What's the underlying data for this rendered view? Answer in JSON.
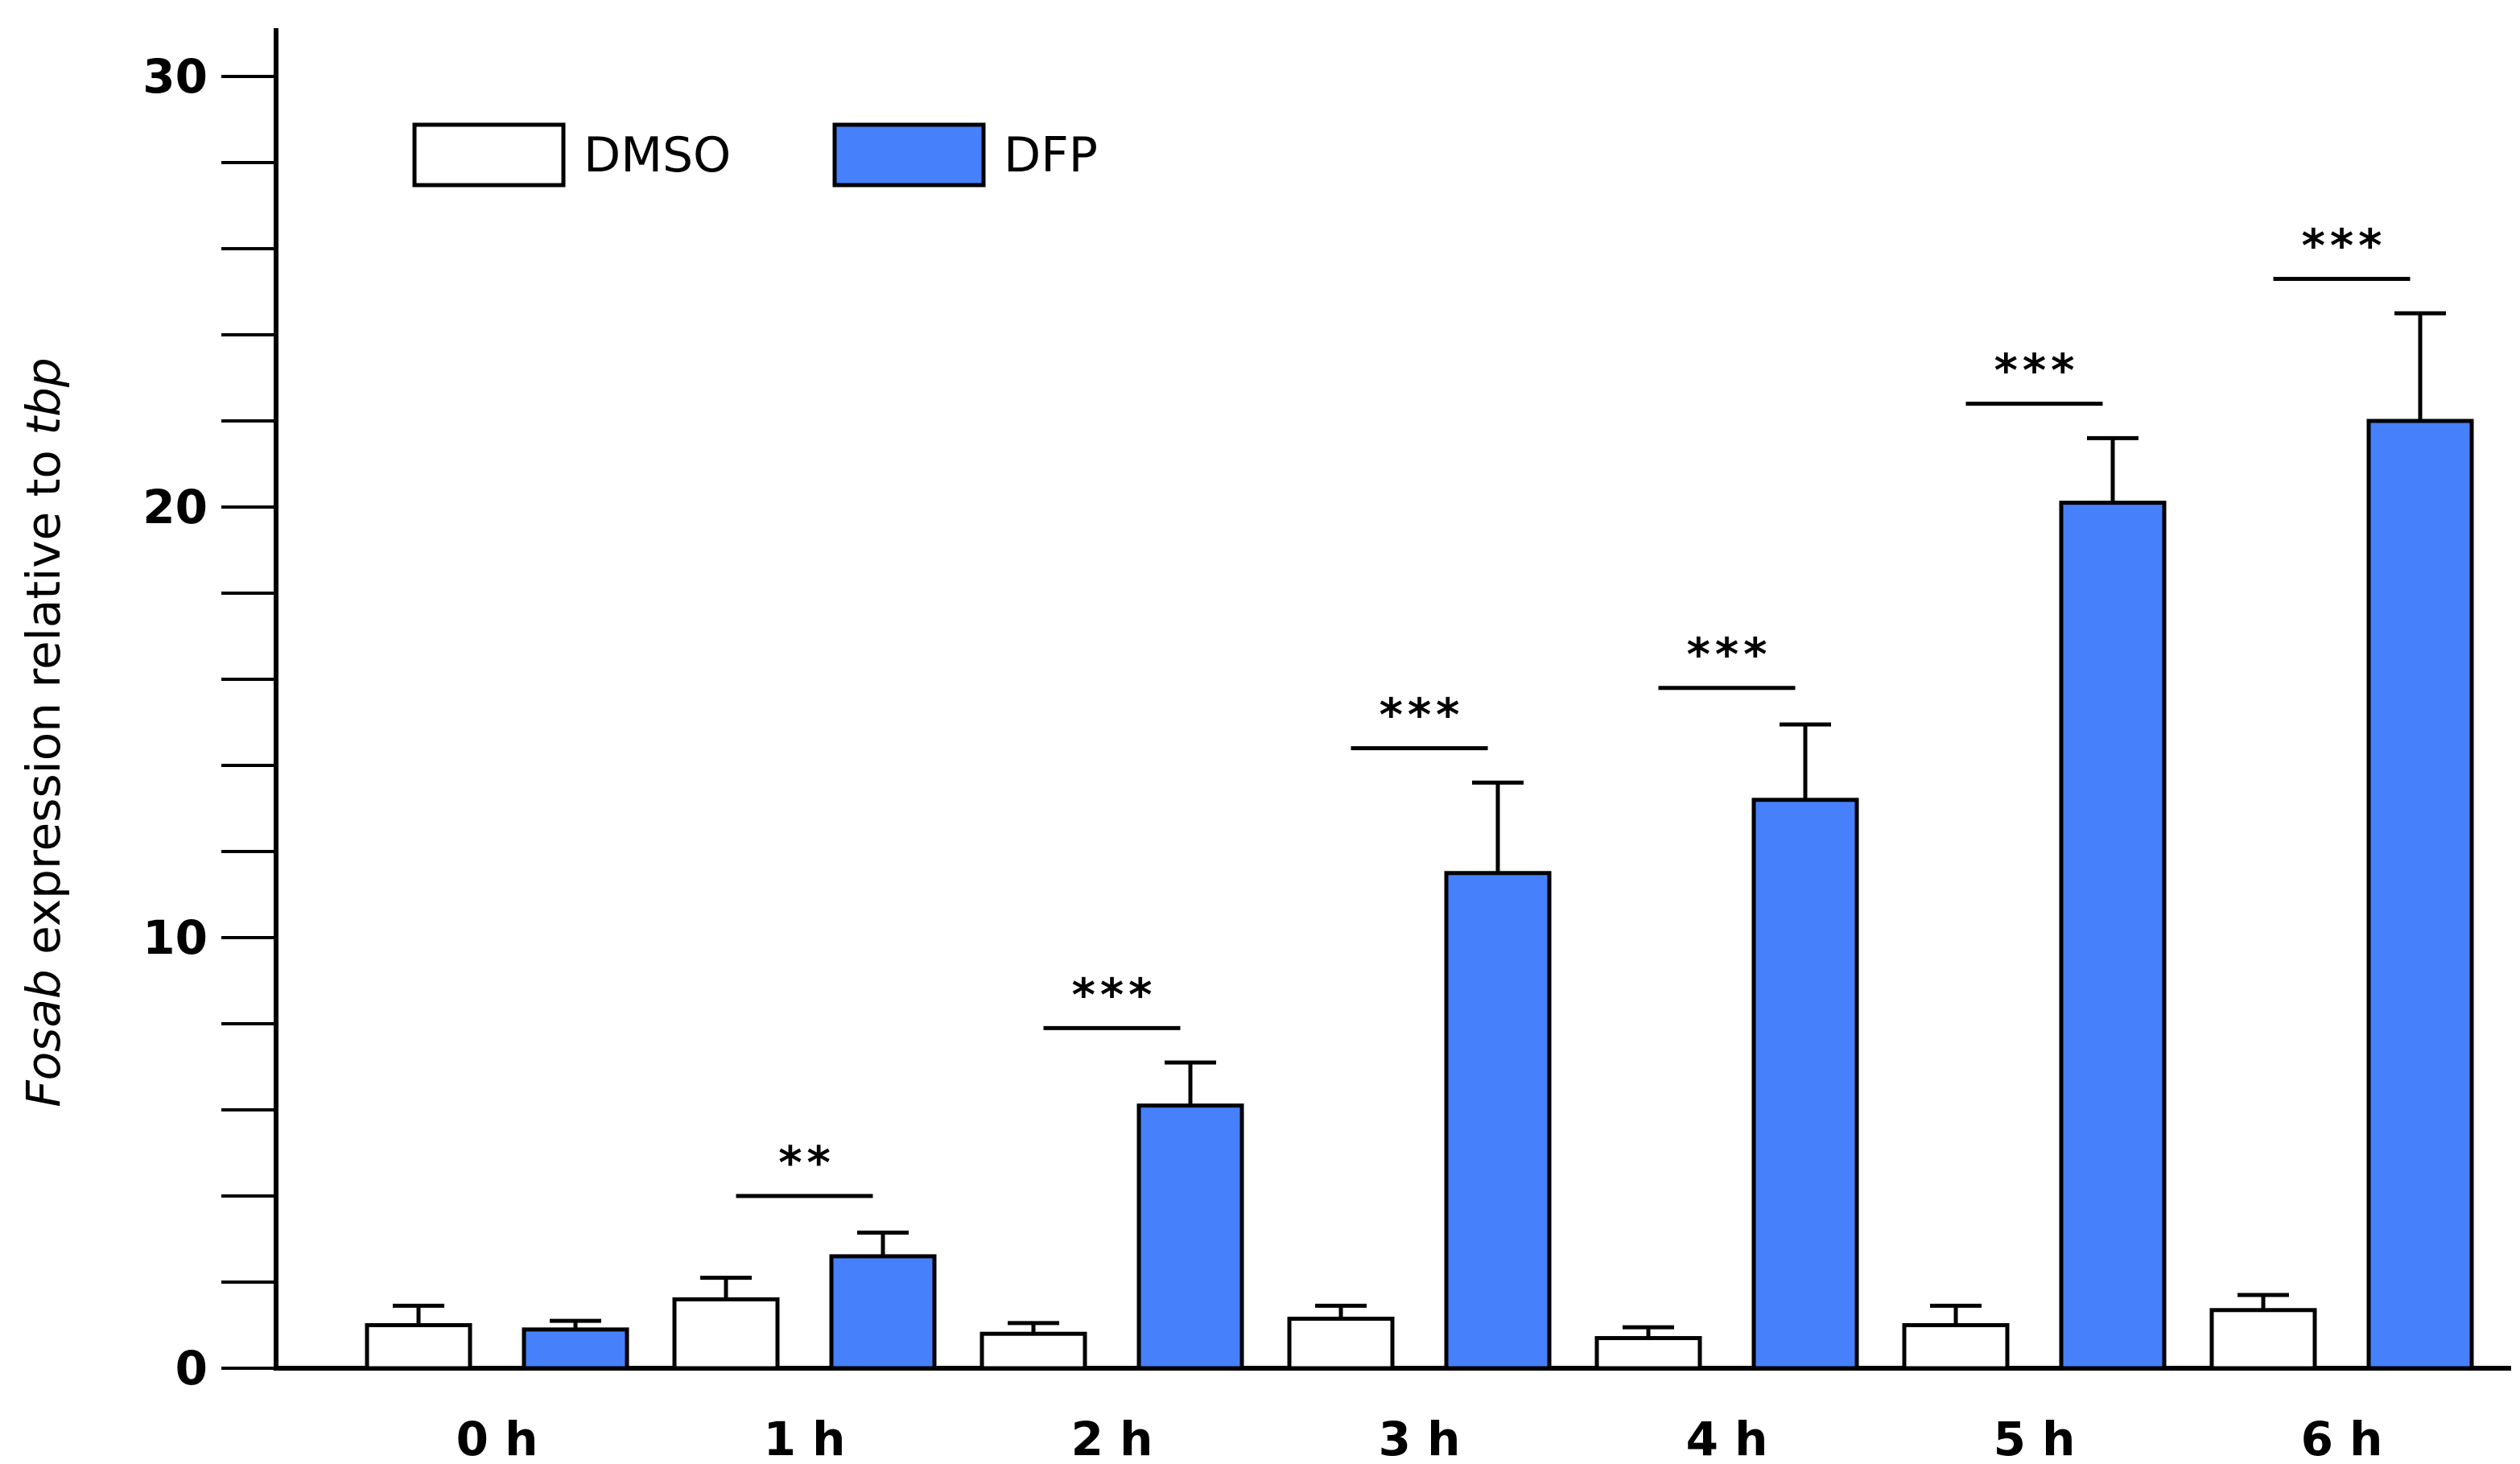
{
  "chart_data": {
    "type": "bar",
    "title": "",
    "xlabel": "",
    "ylabel": {
      "italic_part": "Fosab",
      "middle_part": " expression relative to ",
      "italic_part2": "tbp"
    },
    "ylim": [
      0,
      30
    ],
    "yticks": [
      0,
      10,
      20,
      30
    ],
    "minor_tick_step": 2,
    "categories": [
      "0 h",
      "1 h",
      "2 h",
      "3 h",
      "4 h",
      "5 h",
      "6 h"
    ],
    "series": [
      {
        "name": "DMSO",
        "color": "#ffffff",
        "values": [
          1.0,
          1.6,
          0.8,
          1.15,
          0.7,
          1.0,
          1.35
        ],
        "errors": [
          0.45,
          0.5,
          0.25,
          0.3,
          0.25,
          0.45,
          0.35
        ]
      },
      {
        "name": "DFP",
        "color": "#4680fb",
        "values": [
          0.9,
          2.6,
          6.1,
          11.5,
          13.2,
          20.1,
          22.0
        ],
        "errors": [
          0.2,
          0.55,
          1.0,
          2.1,
          1.75,
          1.5,
          2.5
        ]
      }
    ],
    "significance": [
      "",
      "**",
      "***",
      "***",
      "***",
      "***",
      "***"
    ],
    "significance_bar_values": [
      null,
      4.0,
      7.9,
      14.4,
      15.8,
      22.4,
      25.3
    ],
    "legend": {
      "placement": "top-left",
      "items": [
        "DMSO",
        "DFP"
      ]
    }
  }
}
